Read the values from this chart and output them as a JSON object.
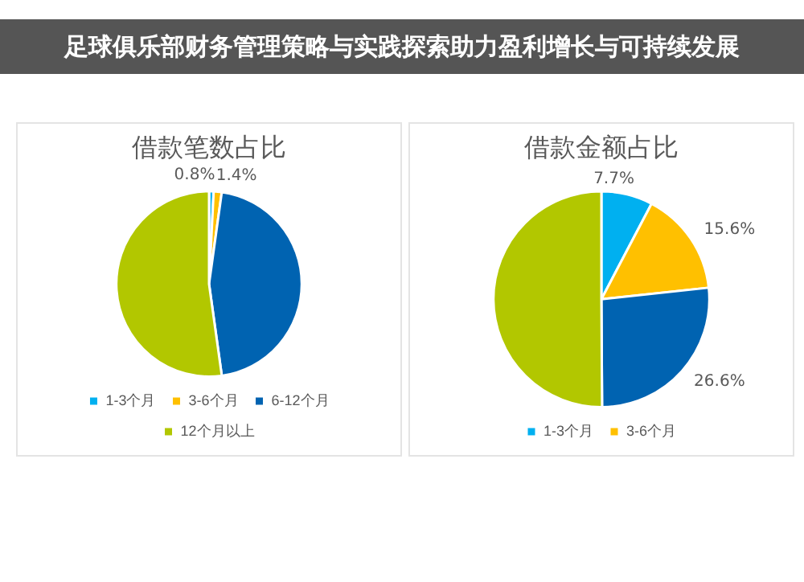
{
  "chart_data": [
    {
      "type": "pie",
      "title": "借款笔数占比",
      "categories": [
        "1-3个月",
        "3-6个月",
        "6-12个月",
        "12个月以上"
      ],
      "values": [
        0.8,
        1.4,
        45.6,
        52.2
      ],
      "colors": [
        "#00b0f0",
        "#ffc000",
        "#0063b1",
        "#b2c700"
      ],
      "value_labels": [
        "0.8%",
        "1.4%",
        null,
        null
      ],
      "legend": "bottom",
      "annotations": [
        "足球俱乐部财务管理策略与实践探索助力盈利增长与可持续发展"
      ]
    },
    {
      "type": "pie",
      "title": "借款金额占比",
      "categories": [
        "1-3个月",
        "3-6个月",
        null,
        null
      ],
      "values": [
        7.7,
        15.6,
        26.6,
        50.1
      ],
      "colors": [
        "#00b0f0",
        "#ffc000",
        "#0063b1",
        "#b2c700"
      ],
      "value_labels": [
        "7.7%",
        "15.6%",
        "26.6%",
        null
      ],
      "legend": "bottom"
    }
  ]
}
